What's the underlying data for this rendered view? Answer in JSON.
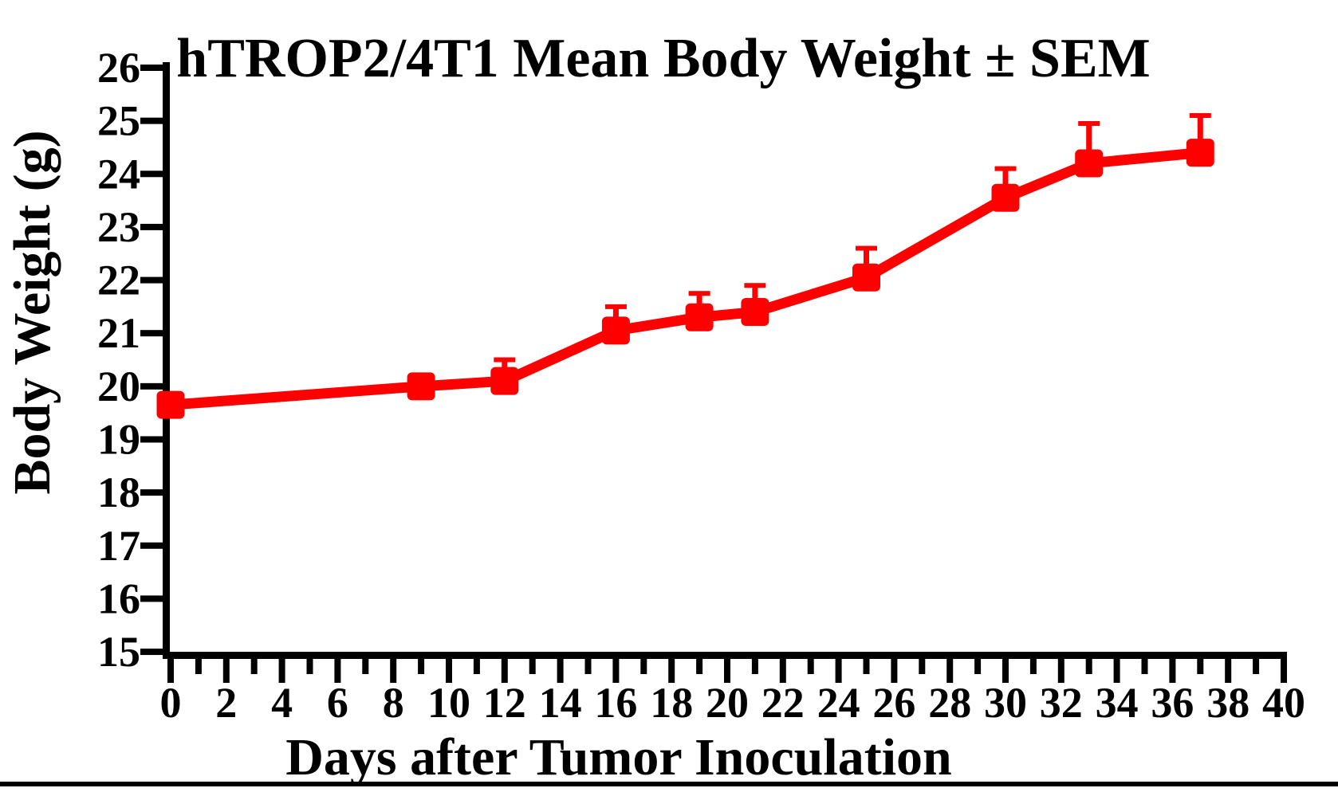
{
  "chart_data": {
    "type": "line",
    "title": "hTROP2/4T1 Mean Body Weight ± SEM",
    "xlabel": "Days after Tumor Inoculation",
    "ylabel": "Body Weight (g)",
    "x": [
      0,
      9,
      12,
      16,
      19,
      21,
      25,
      30,
      33,
      37
    ],
    "y": [
      19.65,
      20.0,
      20.1,
      21.05,
      21.3,
      21.4,
      22.05,
      23.55,
      24.2,
      24.4
    ],
    "sem_upper": [
      0.1,
      0.1,
      0.4,
      0.45,
      0.45,
      0.5,
      0.55,
      0.55,
      0.75,
      0.7
    ],
    "error_bars": "upper-only",
    "xlim": [
      0,
      40
    ],
    "ylim": [
      15,
      26
    ],
    "x_tick_labels": [
      "0",
      "2",
      "4",
      "6",
      "8",
      "10",
      "12",
      "14",
      "16",
      "18",
      "20",
      "22",
      "24",
      "26",
      "28",
      "30",
      "32",
      "34",
      "36",
      "38",
      "40"
    ],
    "x_minor_tick_step": 1,
    "y_tick_labels": [
      "26",
      "25",
      "24",
      "23",
      "22",
      "21",
      "20",
      "19",
      "18",
      "17",
      "16",
      "15"
    ],
    "grid": "off",
    "legend": "none",
    "marker": "square",
    "series_name": "hTROP2/4T1 mean body weight",
    "series_color": "#ff0000",
    "axis_color": "#000000"
  }
}
